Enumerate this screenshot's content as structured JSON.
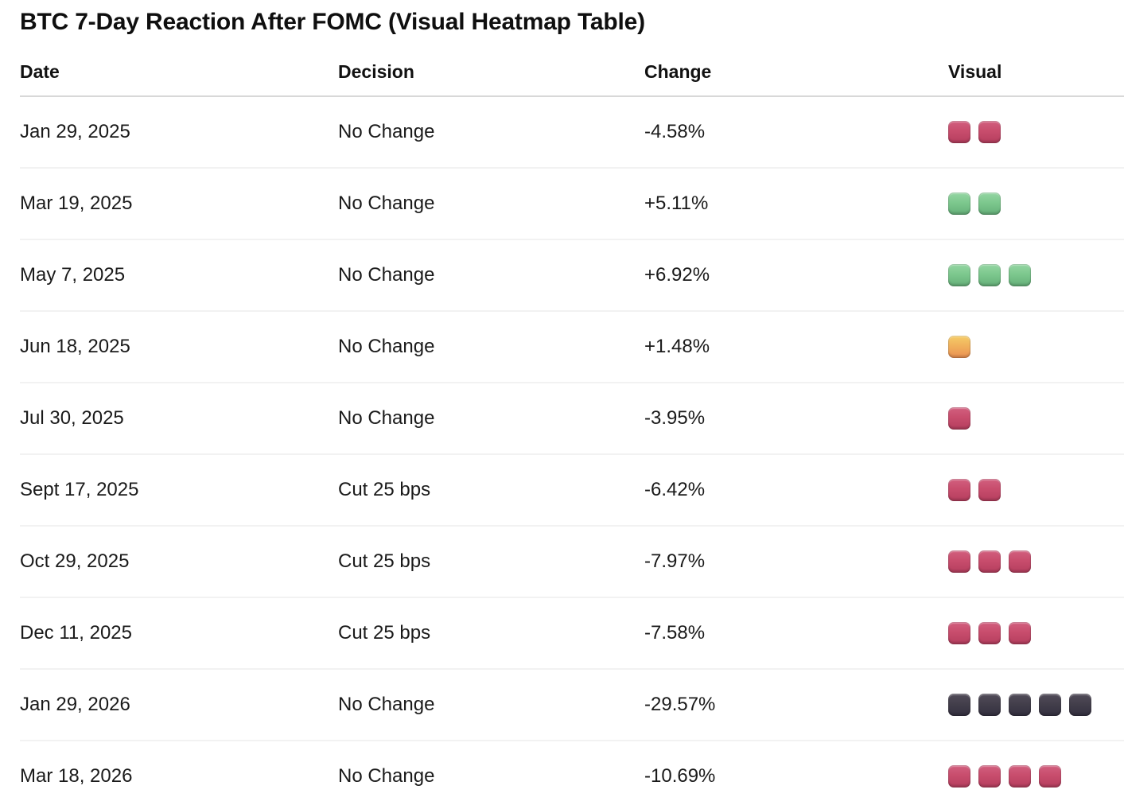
{
  "title": "BTC 7-Day Reaction After FOMC (Visual Heatmap Table)",
  "chart_data": {
    "type": "table",
    "title": "BTC 7-Day Reaction After FOMC (Visual Heatmap Table)",
    "columns": [
      "Date",
      "Decision",
      "Change",
      "Visual"
    ],
    "rows": [
      {
        "date": "Jan 29, 2025",
        "decision": "No Change",
        "change": "-4.58%",
        "change_value": -4.58,
        "visual": {
          "color": "red",
          "count": 2
        }
      },
      {
        "date": "Mar 19, 2025",
        "decision": "No Change",
        "change": "+5.11%",
        "change_value": 5.11,
        "visual": {
          "color": "green",
          "count": 2
        }
      },
      {
        "date": "May 7, 2025",
        "decision": "No Change",
        "change": "+6.92%",
        "change_value": 6.92,
        "visual": {
          "color": "green",
          "count": 3
        }
      },
      {
        "date": "Jun 18, 2025",
        "decision": "No Change",
        "change": "+1.48%",
        "change_value": 1.48,
        "visual": {
          "color": "orange",
          "count": 1
        }
      },
      {
        "date": "Jul 30, 2025",
        "decision": "No Change",
        "change": "-3.95%",
        "change_value": -3.95,
        "visual": {
          "color": "red",
          "count": 1
        }
      },
      {
        "date": "Sept 17, 2025",
        "decision": "Cut 25 bps",
        "change": "-6.42%",
        "change_value": -6.42,
        "visual": {
          "color": "red",
          "count": 2
        }
      },
      {
        "date": "Oct 29, 2025",
        "decision": "Cut 25 bps",
        "change": "-7.97%",
        "change_value": -7.97,
        "visual": {
          "color": "red",
          "count": 3
        }
      },
      {
        "date": "Dec 11, 2025",
        "decision": "Cut 25 bps",
        "change": "-7.58%",
        "change_value": -7.58,
        "visual": {
          "color": "red",
          "count": 3
        }
      },
      {
        "date": "Jan 29, 2026",
        "decision": "No Change",
        "change": "-29.57%",
        "change_value": -29.57,
        "visual": {
          "color": "dark",
          "count": 5
        }
      },
      {
        "date": "Mar 18, 2026",
        "decision": "No Change",
        "change": "-10.69%",
        "change_value": -10.69,
        "visual": {
          "color": "red",
          "count": 4
        }
      }
    ],
    "square_colors": {
      "red": "#c84d6d",
      "green": "#7dc88e",
      "orange": "#f1b25c",
      "dark": "#423e4a"
    },
    "layout": {
      "legend": "none",
      "grid": "row-dividers"
    }
  }
}
